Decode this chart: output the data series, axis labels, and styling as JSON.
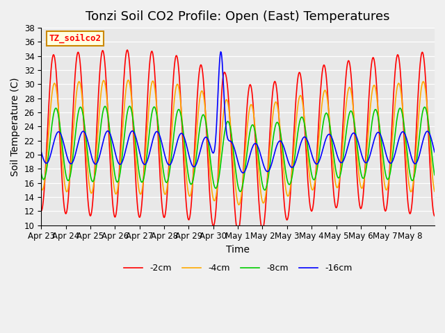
{
  "title": "Tonzi Soil CO2 Profile: Open (East) Temperatures",
  "xlabel": "Time",
  "ylabel": "Soil Temperature (C)",
  "ylim": [
    10,
    38
  ],
  "yticks": [
    10,
    12,
    14,
    16,
    18,
    20,
    22,
    24,
    26,
    28,
    30,
    32,
    34,
    36,
    38
  ],
  "x_labels": [
    "Apr 23",
    "Apr 24",
    "Apr 25",
    "Apr 26",
    "Apr 27",
    "Apr 28",
    "Apr 29",
    "Apr 30",
    "May 1",
    "May 2",
    "May 3",
    "May 4",
    "May 5",
    "May 6",
    "May 7",
    "May 8"
  ],
  "legend_label": "TZ_soilco2",
  "legend_entries": [
    "-2cm",
    "-4cm",
    "-8cm",
    "-16cm"
  ],
  "line_colors": [
    "#ff0000",
    "#ffaa00",
    "#00cc00",
    "#0000ff"
  ],
  "line_width": 1.2,
  "fig_bg_color": "#f0f0f0",
  "plot_bg_color": "#e8e8e8",
  "grid_color": "#ffffff",
  "title_fontsize": 13,
  "label_fontsize": 10,
  "tick_fontsize": 8.5,
  "legend_fontsize": 9,
  "annotation_fontsize": 9
}
